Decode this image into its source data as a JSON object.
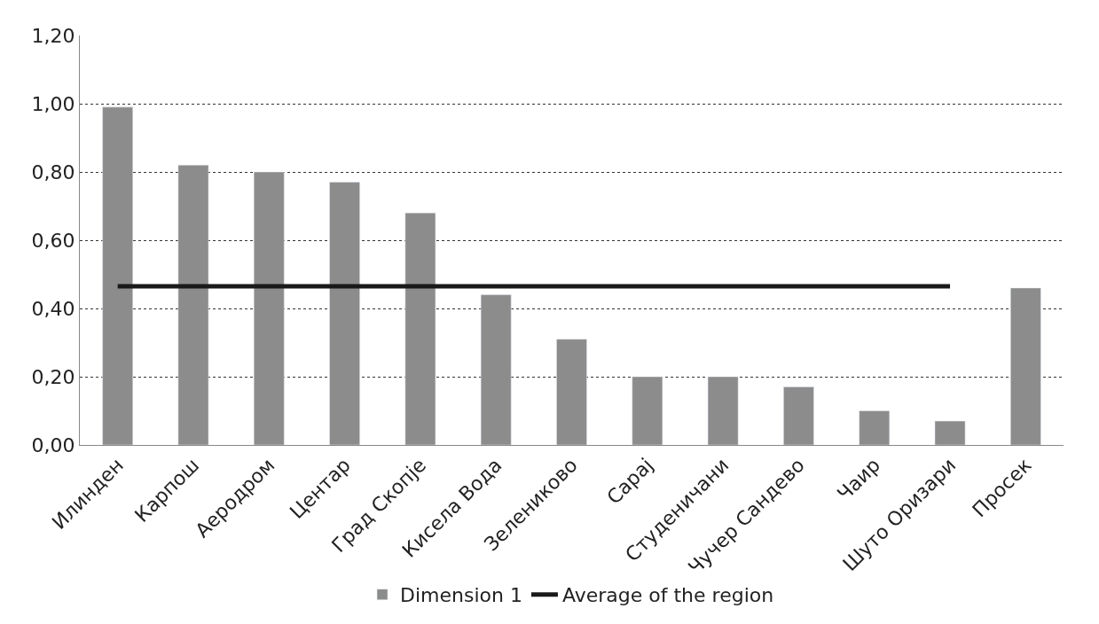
{
  "chart_data": {
    "type": "bar",
    "categories": [
      "Илинден",
      "Карпош",
      "Аеродром",
      "Центар",
      "Град Скопје",
      "Кисела Вода",
      "Зелениково",
      "Сарај",
      "Студеничани",
      "Чучер Сандево",
      "Чаир",
      "Шуто Оризари",
      "Просек"
    ],
    "series": [
      {
        "name": "Dimension 1",
        "color": "#8c8c8c",
        "values": [
          0.99,
          0.82,
          0.8,
          0.77,
          0.68,
          0.44,
          0.31,
          0.2,
          0.2,
          0.17,
          0.1,
          0.07,
          0.46
        ]
      },
      {
        "name": "Average of the region",
        "type": "line",
        "color": "#1a1a1a",
        "values": [
          0.465,
          0.465,
          0.465,
          0.465,
          0.465,
          0.465,
          0.465,
          0.465,
          0.465,
          0.465,
          0.465,
          0.465,
          null
        ]
      }
    ],
    "ylim": [
      0,
      1.2
    ],
    "yticks": [
      {
        "value": 0,
        "label": "0,00"
      },
      {
        "value": 0.2,
        "label": "0,20"
      },
      {
        "value": 0.4,
        "label": "0,40"
      },
      {
        "value": 0.6,
        "label": "0,60"
      },
      {
        "value": 0.8,
        "label": "0,80"
      },
      {
        "value": 1.0,
        "label": "1,00"
      },
      {
        "value": 1.2,
        "label": "1,20"
      }
    ],
    "grid": "y",
    "legend": "bottom",
    "marker": "none",
    "line_style": "solid"
  }
}
